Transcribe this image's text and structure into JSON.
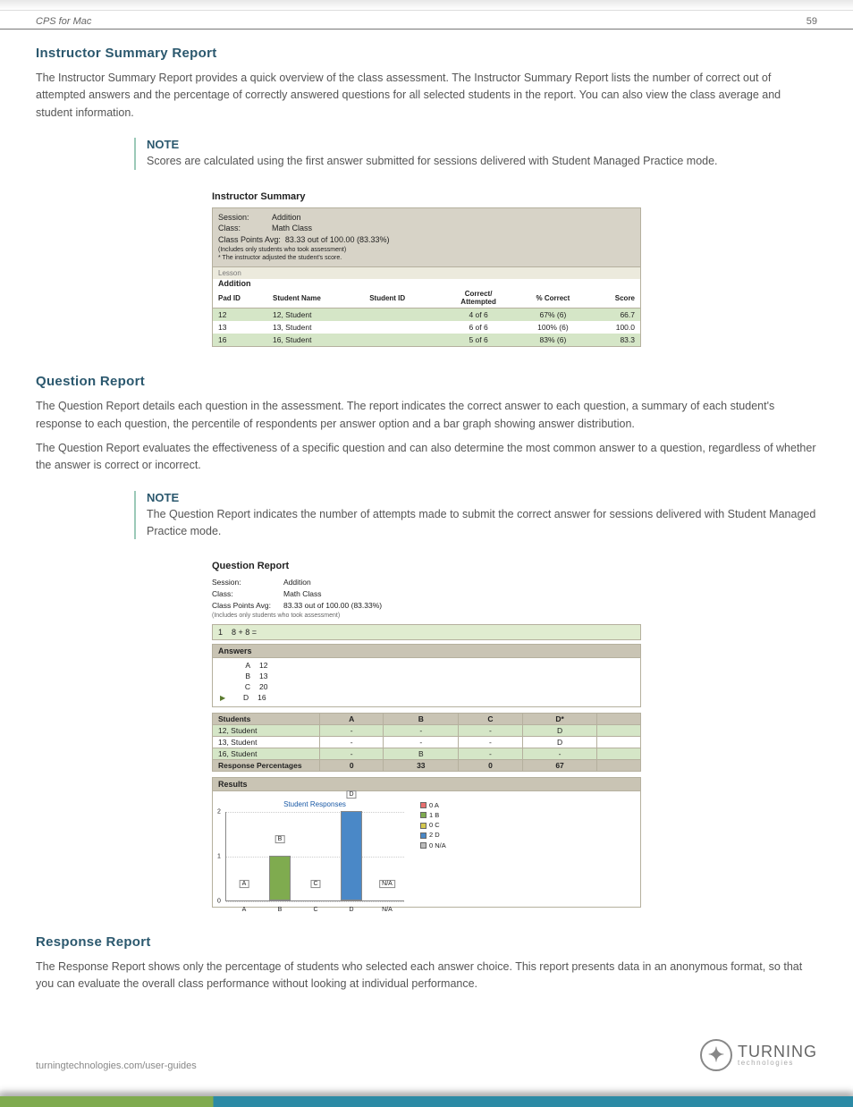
{
  "header": {
    "product": "CPS for Mac",
    "page_number": "59"
  },
  "sections": {
    "instructor_summary": {
      "title": "Instructor Summary Report",
      "body": "The Instructor Summary Report provides a quick overview of the class assessment. The Instructor Summary Report lists the number of correct out of attempted answers and the percentage of correctly answered questions for all selected students in the report. You can also view the class average and student information.",
      "note_label": "NOTE",
      "note": "Scores are calculated using the first answer submitted for sessions delivered with Student Managed Practice mode.",
      "report": {
        "title": "Instructor Summary",
        "session_label": "Session:",
        "session_value": "Addition",
        "class_label": "Class:",
        "class_value": "Math Class",
        "avg_label": "Class Points Avg:",
        "avg_value": "83.33 out of 100.00 (83.33%)",
        "note1": "(Includes only students who took assessment)",
        "note2": "* The instructor adjusted the student's score.",
        "lesson_label": "Lesson",
        "lesson_name": "Addition",
        "columns": {
          "pad_id": "Pad ID",
          "student_name": "Student Name",
          "student_id": "Student ID",
          "correct": "Correct/\nAttempted",
          "pct": "% Correct",
          "score": "Score"
        },
        "rows": [
          {
            "pad_id": "12",
            "name": "12, Student",
            "sid": "",
            "correct": "4 of 6",
            "pct": "67% (6)",
            "score": "66.7",
            "alt": true
          },
          {
            "pad_id": "13",
            "name": "13, Student",
            "sid": "",
            "correct": "6 of 6",
            "pct": "100% (6)",
            "score": "100.0",
            "alt": false
          },
          {
            "pad_id": "16",
            "name": "16, Student",
            "sid": "",
            "correct": "5 of 6",
            "pct": "83% (6)",
            "score": "83.3",
            "alt": true
          }
        ],
        "header_bg": "#d7d3c7",
        "alt_row_bg": "#d5e6c7"
      }
    },
    "question_report": {
      "title": "Question Report",
      "body1": "The Question Report details each question in the assessment. The report indicates the correct answer to each question, a summary of each student's response to each question, the percentile of respondents per answer option and a bar graph showing answer distribution.",
      "body2": "The Question Report evaluates the effectiveness of a specific question and can also determine the most common answer to a question, regardless of whether the answer is correct or incorrect.",
      "note_label": "NOTE",
      "note": "The Question Report indicates the number of attempts made to submit the correct answer for sessions delivered with Student Managed Practice mode.",
      "report": {
        "title": "Question Report",
        "session_label": "Session:",
        "session_value": "Addition",
        "class_label": "Class:",
        "class_value": "Math Class",
        "avg_label": "Class Points Avg:",
        "avg_value": "83.33 out of 100.00 (83.33%)",
        "note1": "(Includes only students who took assessment)",
        "question_num": "1",
        "question_text": "8 + 8 =",
        "answers_title": "Answers",
        "answers": [
          {
            "letter": "A",
            "value": "12",
            "correct": false
          },
          {
            "letter": "B",
            "value": "13",
            "correct": false
          },
          {
            "letter": "C",
            "value": "20",
            "correct": false
          },
          {
            "letter": "D",
            "value": "16",
            "correct": true
          }
        ],
        "students_title": "Students",
        "option_headers": [
          "A",
          "B",
          "C",
          "D*"
        ],
        "student_rows": [
          {
            "name": "12, Student",
            "cells": [
              "-",
              "-",
              "-",
              "D"
            ],
            "g": true
          },
          {
            "name": "13, Student",
            "cells": [
              "-",
              "-",
              "-",
              "D"
            ],
            "g": false
          },
          {
            "name": "16, Student",
            "cells": [
              "-",
              "B",
              "-",
              "-"
            ],
            "g": true
          }
        ],
        "resp_pct_label": "Response Percentages",
        "resp_pct": [
          "0",
          "33",
          "0",
          "67"
        ],
        "results_title": "Results",
        "chart": {
          "chart_title": "Student Responses",
          "categories": [
            "A",
            "B",
            "C",
            "D",
            "N/A"
          ],
          "values": [
            0,
            1,
            0,
            2,
            0
          ],
          "bar_colors": [
            "#e86f6f",
            "#7fab4f",
            "#d4c84e",
            "#4a88c7",
            "#bcbcbc"
          ],
          "y_max": 2,
          "y_ticks": [
            0,
            1,
            2
          ],
          "legend": [
            {
              "label": "0 A",
              "color": "#e86f6f"
            },
            {
              "label": "1 B",
              "color": "#7fab4f"
            },
            {
              "label": "0 C",
              "color": "#d4c84e"
            },
            {
              "label": "2 D",
              "color": "#4a88c7"
            },
            {
              "label": "0 N/A",
              "color": "#bcbcbc"
            }
          ]
        }
      }
    },
    "response_report": {
      "title": "Response Report",
      "body": "The Response Report shows only the percentage of students who selected each answer choice. This report presents data in an anonymous format, so that you can evaluate the overall class performance without looking at individual performance."
    }
  },
  "footer": {
    "url": "turningtechnologies.com/user-guides",
    "brand_top": "TURNING",
    "brand_bottom": "technologies"
  }
}
